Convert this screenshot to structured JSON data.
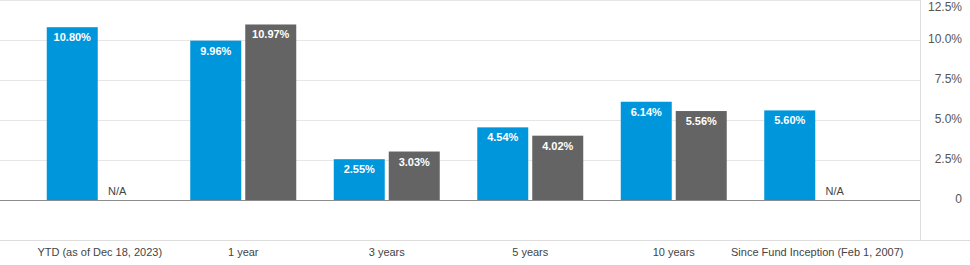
{
  "chart_data": {
    "type": "bar",
    "categories": [
      "YTD (as of Dec 18, 2023)",
      "1 year",
      "3 years",
      "5 years",
      "10 years",
      "Since Fund Inception (Feb 1, 2007)"
    ],
    "series": [
      {
        "color": "#0096dc",
        "values": [
          10.8,
          9.96,
          2.55,
          4.54,
          6.14,
          5.6
        ],
        "value_labels": [
          "10.80%",
          "9.96%",
          "2.55%",
          "4.54%",
          "6.14%",
          "5.60%"
        ]
      },
      {
        "color": "#646464",
        "values": [
          null,
          10.97,
          3.03,
          4.02,
          5.56,
          null
        ],
        "value_labels": [
          "N/A",
          "10.97%",
          "3.03%",
          "4.02%",
          "5.56%",
          "N/A"
        ]
      }
    ],
    "ylim": [
      -2.5,
      12.5
    ],
    "yticks": [
      0,
      {
        "value": 2.5,
        "label": "2.5%"
      },
      {
        "value": 5,
        "label": "5.0%"
      },
      {
        "value": 7.5,
        "label": "7.5%"
      },
      {
        "value": 10,
        "label": "10.0%"
      },
      {
        "value": 12.5,
        "label": "12.5%"
      }
    ],
    "grid": true,
    "data_labels": true
  }
}
